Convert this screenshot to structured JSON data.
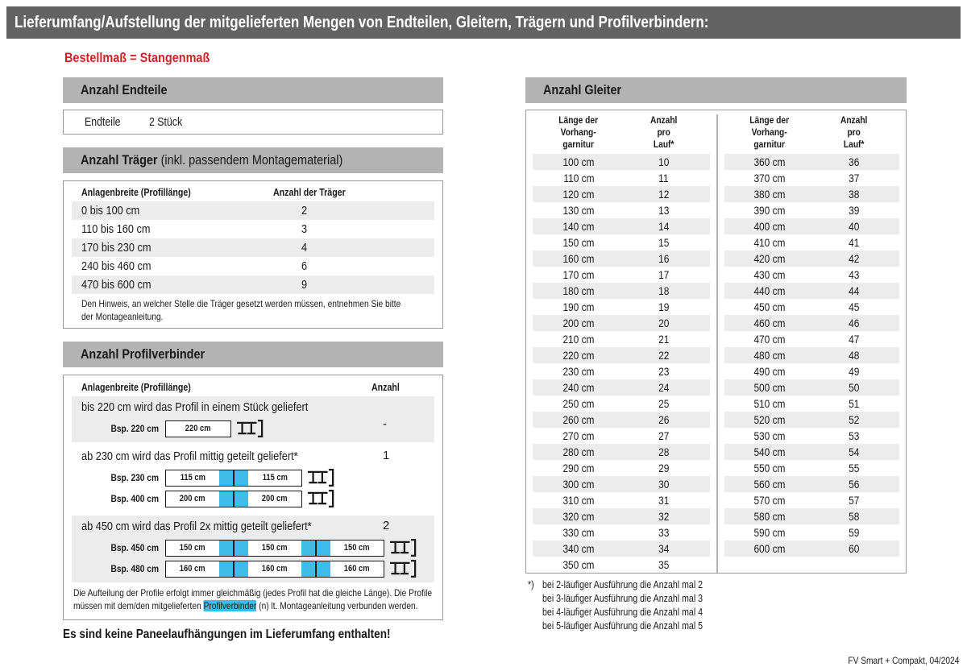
{
  "page": {
    "title": "Lieferumfang/Aufstellung der mitgelieferten Mengen von Endteilen, Gleitern, Trägern und Profilverbindern:",
    "subtitle": "Bestellmaß = Stangenmaß",
    "footer": "FV Smart + Compakt, 04/2024",
    "colors": {
      "title_bar": "#636363",
      "section_header": "#b3b3b3",
      "row_stripe": "#ececec",
      "accent_red": "#cf2128",
      "accent_cyan": "#3fbce9"
    }
  },
  "endteile": {
    "header": "Anzahl Endteile",
    "label": "Endteile",
    "value": "2 Stück"
  },
  "traeger": {
    "header_bold": "Anzahl Träger",
    "header_rest": " (inkl. passendem Montagematerial)",
    "col1": "Anlagenbreite (Profillänge)",
    "col2": "Anzahl der Träger",
    "rows": [
      {
        "range": "0 bis 100 cm",
        "count": "2"
      },
      {
        "range": "110 bis 160 cm",
        "count": "3"
      },
      {
        "range": "170 bis 230 cm",
        "count": "4"
      },
      {
        "range": "240 bis 460 cm",
        "count": "6"
      },
      {
        "range": "470 bis 600 cm",
        "count": "9"
      }
    ],
    "note_lines": [
      "Den Hinweis, an welcher Stelle die Träger gesetzt werden müssen, entnehmen Sie bitte",
      "der Montageanleitung."
    ]
  },
  "profilverbinder": {
    "header": "Anzahl Profilverbinder",
    "col1": "Anlagenbreite (Profillänge)",
    "col2": "Anzahl",
    "cases": [
      {
        "text": "bis 220 cm wird das Profil in einem Stück geliefert",
        "count": "-",
        "examples": [
          {
            "label": "Bsp. 220 cm",
            "segments": [
              "220 cm"
            ]
          }
        ]
      },
      {
        "text": "ab 230 cm wird das Profil mittig geteilt geliefert*",
        "count": "1",
        "examples": [
          {
            "label": "Bsp. 230 cm",
            "segments": [
              "115 cm",
              "115 cm"
            ]
          },
          {
            "label": "Bsp. 400 cm",
            "segments": [
              "200 cm",
              "200 cm"
            ]
          }
        ]
      },
      {
        "text": "ab 450 cm wird das Profil 2x mittig geteilt geliefert*",
        "count": "2",
        "examples": [
          {
            "label": "Bsp. 450 cm",
            "segments": [
              "150 cm",
              "150 cm",
              "150 cm"
            ]
          },
          {
            "label": "Bsp. 480 cm",
            "segments": [
              "160 cm",
              "160 cm",
              "160 cm"
            ]
          }
        ]
      }
    ],
    "note_line1": "Die Aufteilung der Profile erfolgt immer gleichmäßig (jedes Profil hat die gleiche Länge). Die Profile",
    "note_line2_pre": "müssen mit dem/den mitgelieferten ",
    "note_highlight": "Profilverbinder",
    "note_line2_post": " (n) lt. Montageanleitung verbunden werden."
  },
  "no_paneel_note": "Es sind keine Paneelaufhängungen im Lieferumfang enthalten!",
  "gleiter": {
    "header": "Anzahl Gleiter",
    "col_length_lines": [
      "Länge der",
      "Vorhang-",
      "garnitur"
    ],
    "col_count_lines": [
      "Anzahl",
      "pro",
      "Lauf*"
    ],
    "left_rows": [
      [
        "100 cm",
        "10"
      ],
      [
        "110 cm",
        "11"
      ],
      [
        "120 cm",
        "12"
      ],
      [
        "130 cm",
        "13"
      ],
      [
        "140 cm",
        "14"
      ],
      [
        "150 cm",
        "15"
      ],
      [
        "160 cm",
        "16"
      ],
      [
        "170 cm",
        "17"
      ],
      [
        "180 cm",
        "18"
      ],
      [
        "190 cm",
        "19"
      ],
      [
        "200 cm",
        "20"
      ],
      [
        "210 cm",
        "21"
      ],
      [
        "220 cm",
        "22"
      ],
      [
        "230 cm",
        "23"
      ],
      [
        "240 cm",
        "24"
      ],
      [
        "250 cm",
        "25"
      ],
      [
        "260 cm",
        "26"
      ],
      [
        "270 cm",
        "27"
      ],
      [
        "280 cm",
        "28"
      ],
      [
        "290 cm",
        "29"
      ],
      [
        "300 cm",
        "30"
      ],
      [
        "310 cm",
        "31"
      ],
      [
        "320 cm",
        "32"
      ],
      [
        "330 cm",
        "33"
      ],
      [
        "340 cm",
        "34"
      ],
      [
        "350 cm",
        "35"
      ]
    ],
    "right_rows": [
      [
        "360 cm",
        "36"
      ],
      [
        "370 cm",
        "37"
      ],
      [
        "380 cm",
        "38"
      ],
      [
        "390 cm",
        "39"
      ],
      [
        "400 cm",
        "40"
      ],
      [
        "410 cm",
        "41"
      ],
      [
        "420 cm",
        "42"
      ],
      [
        "430 cm",
        "43"
      ],
      [
        "440 cm",
        "44"
      ],
      [
        "450 cm",
        "45"
      ],
      [
        "460 cm",
        "46"
      ],
      [
        "470 cm",
        "47"
      ],
      [
        "480 cm",
        "48"
      ],
      [
        "490 cm",
        "49"
      ],
      [
        "500 cm",
        "50"
      ],
      [
        "510 cm",
        "51"
      ],
      [
        "520 cm",
        "52"
      ],
      [
        "530 cm",
        "53"
      ],
      [
        "540 cm",
        "54"
      ],
      [
        "550 cm",
        "55"
      ],
      [
        "560 cm",
        "56"
      ],
      [
        "570 cm",
        "57"
      ],
      [
        "580 cm",
        "58"
      ],
      [
        "590 cm",
        "59"
      ],
      [
        "600 cm",
        "60"
      ]
    ],
    "footnote_marker": "*)",
    "footnotes": [
      "bei 2-läufiger Ausführung die Anzahl mal 2",
      "bei 3-läufiger Ausführung die Anzahl mal 3",
      "bei 4-läufiger Ausführung die Anzahl mal 4",
      "bei 5-läufiger Ausführung die Anzahl mal 5"
    ]
  }
}
